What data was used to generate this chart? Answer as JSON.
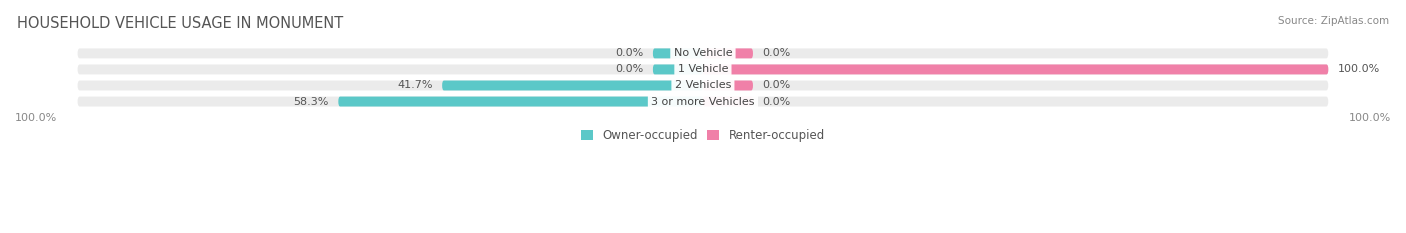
{
  "title": "HOUSEHOLD VEHICLE USAGE IN MONUMENT",
  "source": "Source: ZipAtlas.com",
  "categories": [
    "No Vehicle",
    "1 Vehicle",
    "2 Vehicles",
    "3 or more Vehicles"
  ],
  "owner_values": [
    0.0,
    0.0,
    41.7,
    58.3
  ],
  "renter_values": [
    0.0,
    100.0,
    0.0,
    0.0
  ],
  "owner_color": "#5bc8c8",
  "renter_color": "#f080a8",
  "bar_bg_color": "#ececec",
  "bar_height": 0.62,
  "stub_size": 8.0,
  "title_fontsize": 10.5,
  "label_fontsize": 8.0,
  "tick_fontsize": 8.0,
  "legend_fontsize": 8.5,
  "background_color": "#ffffff",
  "axis_bg_color": "#ebebeb"
}
